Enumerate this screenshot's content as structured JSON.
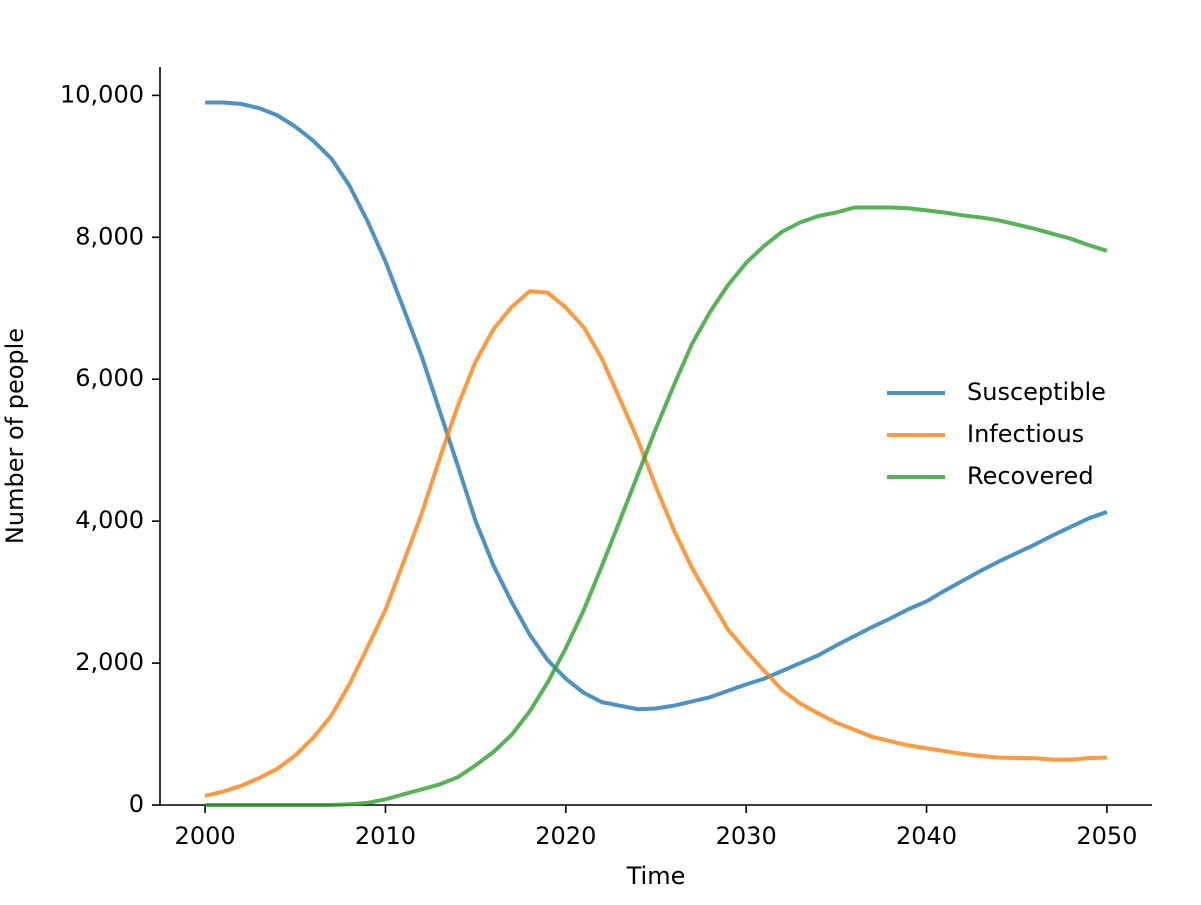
{
  "chart_data": {
    "type": "line",
    "x_label": "Time",
    "y_label": "Number of people",
    "x": [
      2000,
      2001,
      2002,
      2003,
      2004,
      2005,
      2006,
      2007,
      2008,
      2009,
      2010,
      2011,
      2012,
      2013,
      2014,
      2015,
      2016,
      2017,
      2018,
      2019,
      2020,
      2021,
      2022,
      2023,
      2024,
      2025,
      2026,
      2027,
      2028,
      2029,
      2030,
      2031,
      2032,
      2033,
      2034,
      2035,
      2036,
      2037,
      2038,
      2039,
      2040,
      2041,
      2042,
      2043,
      2044,
      2045,
      2046,
      2047,
      2048,
      2049,
      2050
    ],
    "series": [
      {
        "name": "Susceptible",
        "color": "#1f77b4",
        "values": [
          9900,
          9900,
          9880,
          9820,
          9720,
          9560,
          9360,
          9110,
          8730,
          8230,
          7660,
          7000,
          6330,
          5560,
          4790,
          4000,
          3370,
          2860,
          2400,
          2040,
          1780,
          1580,
          1450,
          1400,
          1350,
          1360,
          1400,
          1460,
          1520,
          1610,
          1700,
          1780,
          1890,
          2000,
          2110,
          2250,
          2380,
          2510,
          2630,
          2760,
          2870,
          3020,
          3160,
          3300,
          3430,
          3550,
          3670,
          3800,
          3920,
          4040,
          4130
        ]
      },
      {
        "name": "Infectious",
        "color": "#ff7f0e",
        "values": [
          130,
          190,
          270,
          380,
          510,
          700,
          950,
          1260,
          1700,
          2220,
          2750,
          3420,
          4100,
          4880,
          5620,
          6250,
          6710,
          7020,
          7240,
          7220,
          7010,
          6730,
          6290,
          5720,
          5140,
          4480,
          3870,
          3340,
          2900,
          2470,
          2170,
          1890,
          1620,
          1430,
          1290,
          1160,
          1060,
          960,
          900,
          840,
          800,
          760,
          720,
          690,
          670,
          660,
          660,
          640,
          640,
          660,
          670
        ]
      },
      {
        "name": "Recovered",
        "color": "#2ca02c",
        "values": [
          0,
          0,
          0,
          0,
          0,
          0,
          0,
          0,
          10,
          30,
          80,
          150,
          220,
          290,
          390,
          560,
          750,
          990,
          1320,
          1730,
          2210,
          2750,
          3370,
          4010,
          4660,
          5310,
          5920,
          6500,
          6950,
          7330,
          7640,
          7880,
          8080,
          8210,
          8300,
          8350,
          8420,
          8420,
          8420,
          8410,
          8380,
          8350,
          8310,
          8280,
          8240,
          8180,
          8120,
          8050,
          7980,
          7890,
          7810
        ]
      }
    ],
    "xlim": [
      1997.5,
      2052.5
    ],
    "xticks": [
      2000,
      2010,
      2020,
      2030,
      2040,
      2050
    ],
    "ylim": [
      0,
      10400
    ],
    "yticks": [
      0,
      {
        "value": 2000,
        "label": "2,000"
      },
      {
        "value": 4000,
        "label": "4,000"
      },
      {
        "value": 6000,
        "label": "6,000"
      },
      {
        "value": 8000,
        "label": "8,000"
      },
      {
        "value": 10000,
        "label": "10,000"
      }
    ],
    "grid": false,
    "legend": "center right"
  }
}
